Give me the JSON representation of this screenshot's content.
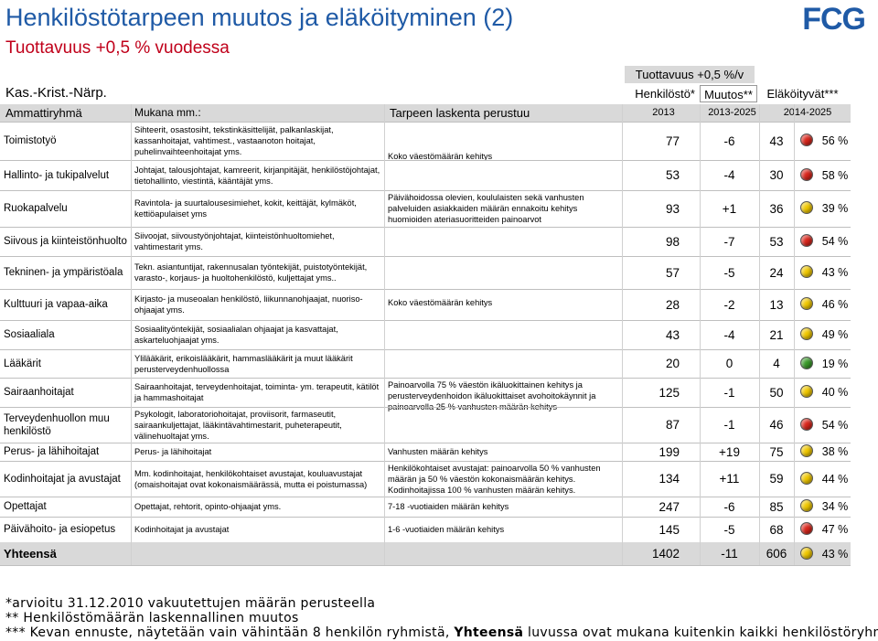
{
  "header": {
    "title": "Henkilöstötarpeen muutos ja eläköityminen (2)",
    "subtitle": "Tuottavuus +0,5 % vuodessa",
    "logo": "FCG",
    "region": "Kas.-Krist.-Närp.",
    "productivity": "Tuottavuus +0,5 %/v",
    "staff": "Henkilöstö*",
    "change": "Muutos**",
    "retiring": "Eläköityvät***"
  },
  "table": {
    "columns": [
      "Ammattiryhmä",
      "Mukana mm.:",
      "Tarpeen laskenta perustuu",
      "2013",
      "2013-2025",
      "2014-2025"
    ],
    "rows": [
      {
        "group": "Toimistotyö",
        "examples": "Sihteerit, osastosiht, tekstinkäsittelijät, palkanlaskijat, kassanhoitajat, vahtimest., vastaanoton hoitajat, puhelinvaihteenhoitajat yms.",
        "basis": "Koko väestömäärän kehitys",
        "staff": "77",
        "change": "-6",
        "retiring": "43",
        "share": "56 %",
        "light": "#d9261c"
      },
      {
        "group": "Hallinto- ja tukipalvelut",
        "examples": "Johtajat, talousjohtajat, kamreerit, kirjanpitäjät, henkilöstöjohtajat, tietohallinto, viestintä, kääntäjät yms.",
        "staff": "53",
        "change": "-4",
        "retiring": "30",
        "share": "58 %",
        "light": "#d9261c"
      },
      {
        "group": "Ruokapalvelu",
        "examples": "Ravintola- ja suurtalousesimiehet, kokit, keittäjät, kylmäköt, kettiöapulaiset yms",
        "basis": "Päivähoidossa olevien, koululaisten sekä vanhusten palveluiden asiakkaiden määrän ennakoitu kehitys huomioiden ateriasuoritteiden painoarvot",
        "staff": "93",
        "change": "+1",
        "retiring": "36",
        "share": "39 %",
        "light": "#f0c800"
      },
      {
        "group": "Siivous ja kiinteistönhuolto",
        "examples": "Siivoojat, siivoustyönjohtajat, kiinteistönhuoltomiehet, vahtimestarit yms.",
        "staff": "98",
        "change": "-7",
        "retiring": "53",
        "share": "54 %",
        "light": "#d9261c"
      },
      {
        "group": "Tekninen- ja ympäristöala",
        "examples": "Tekn. asiantuntijat, rakennusalan työntekijät, puistotyöntekijät, varasto-, korjaus- ja huoltohenkilöstö, kuljettajat yms..",
        "basis": "Koko väestömäärän kehitys",
        "staff": "57",
        "change": "-5",
        "retiring": "24",
        "share": "43 %",
        "light": "#f0c800"
      },
      {
        "group": "Kulttuuri ja vapaa-aika",
        "examples": "Kirjasto- ja museoalan henkilöstö, liikunnanohjaajat, nuoriso-ohjaajat yms.",
        "staff": "28",
        "change": "-2",
        "retiring": "13",
        "share": "46 %",
        "light": "#f0c800"
      },
      {
        "group": "Sosiaaliala",
        "examples": "Sosiaalityöntekijät, sosiaalialan ohjaajat ja kasvattajat, askarteluohjaajat yms.",
        "staff": "43",
        "change": "-4",
        "retiring": "21",
        "share": "49 %",
        "light": "#f0c800"
      },
      {
        "group": "Lääkärit",
        "examples": "Ylilääkärit, erikoislääkärit, hammaslääkärit ja muut lääkärit perusterveydenhuollossa",
        "basis": "Painoarvolla 75 % väestön ikäluokittainen kehitys ja perusterveydenhoidon ikäluokittaiset avohoitokäynnit ja painoarvolla 25 % vanhusten määrän kehitys",
        "staff": "20",
        "change": "0",
        "retiring": "4",
        "share": "19 %",
        "light": "#3a9a2a"
      },
      {
        "group": "Sairaanhoitajat",
        "examples": "Sairaanhoitajat, terveydenhoitajat, toiminta- ym. terapeutit, kätilöt ja hammashoitajat",
        "staff": "125",
        "change": "-1",
        "retiring": "50",
        "share": "40 %",
        "light": "#f0c800"
      },
      {
        "group": "Terveydenhuollon muu henkilöstö",
        "examples": "Psykologit, laboratoriohoitajat, proviisorit, farmaseutit, sairaankuljettajat, lääkintävahtimestarit, puheterapeutit, välinehuoltajat yms.",
        "staff": "87",
        "change": "-1",
        "retiring": "46",
        "share": "54 %",
        "light": "#d9261c"
      },
      {
        "group": "Perus- ja lähihoitajat",
        "examples": "Perus- ja lähihoitajat",
        "basis": "Vanhusten määrän kehitys",
        "staff": "199",
        "change": "+19",
        "retiring": "75",
        "share": "38 %",
        "light": "#f0c800"
      },
      {
        "group": "Kodinhoitajat ja avustajat",
        "examples": "Mm. kodinhoitajat, henkilökohtaiset avustajat, kouluavustajat (omaishoitajat ovat kokonaismäärässä, mutta ei poistumassa)",
        "basis": "Henkilökohtaiset avustajat: painoarvolla 50 % vanhusten määrän ja 50 % väestön kokonaismäärän kehitys. Kodinhoitajissa 100 % vanhusten määrän kehitys.",
        "staff": "134",
        "change": "+11",
        "retiring": "59",
        "share": "44 %",
        "light": "#f0c800"
      },
      {
        "group": "Opettajat",
        "examples": "Opettajat, rehtorit, opinto-ohjaajat yms.",
        "basis": "7-18 -vuotiaiden määrän kehitys",
        "staff": "247",
        "change": "-6",
        "retiring": "85",
        "share": "34 %",
        "light": "#f0c800"
      },
      {
        "group": "Päivähoito- ja esiopetus",
        "examples": "Kodinhoitajat ja avustajat",
        "basis": "1-6 -vuotiaiden määrän kehitys",
        "staff": "145",
        "change": "-5",
        "retiring": "68",
        "share": "47 %",
        "light": "#d9261c"
      }
    ],
    "total": {
      "group": "Yhteensä",
      "staff": "1402",
      "change": "-11",
      "retiring": "606",
      "share": "43 %",
      "light": "#f0c800"
    }
  },
  "footnotes": [
    [
      "*arvioitu 31.12.2010 vakuutettujen määrän perusteella"
    ],
    [
      "** Henkilöstömäärän laskennallinen muutos"
    ],
    [
      "*** Kevan ennuste, näytetään vain vähintään 8 henkilön ryhmistä, ",
      "Yhteensä",
      " luvussa ovat mukana kuitenkin kaikki henkilöstöryhmät"
    ]
  ]
}
